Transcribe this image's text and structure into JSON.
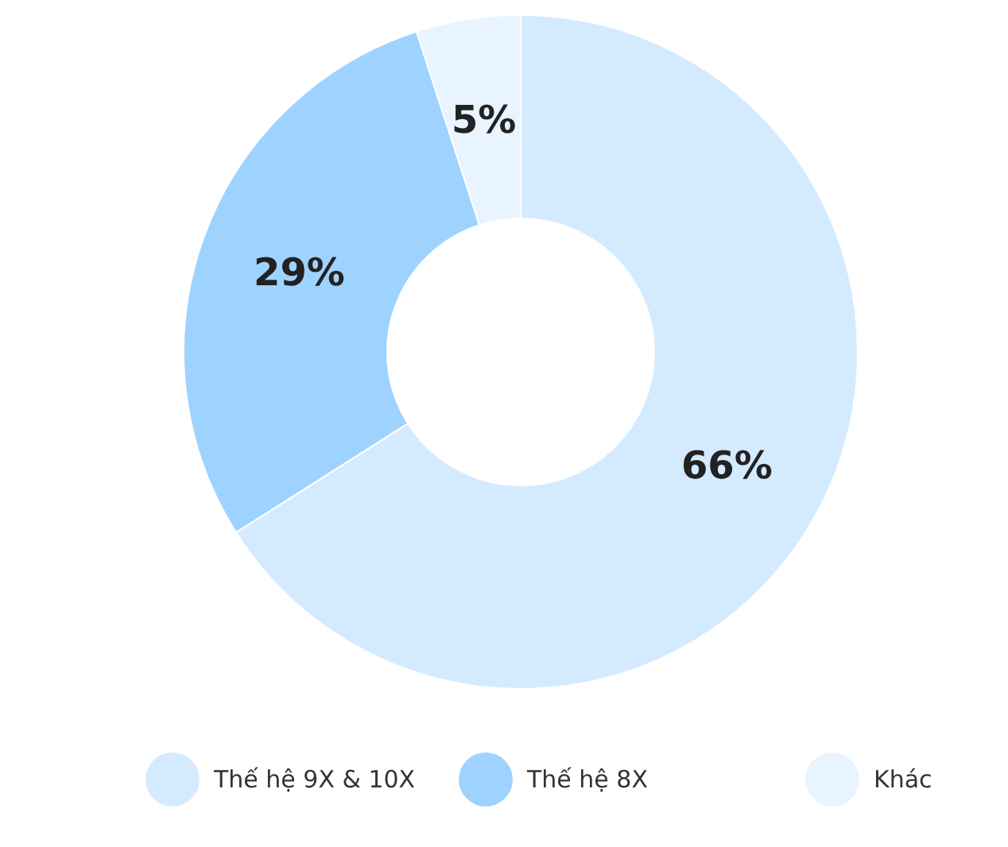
{
  "chart_data": {
    "type": "donut",
    "categories": [
      "Thế hệ 9X & 10X",
      "Thế hệ 8X",
      "Khác"
    ],
    "values": [
      66,
      29,
      5
    ],
    "colors": [
      "#d4eaff",
      "#9fd3ff",
      "#e8f4ff"
    ],
    "value_labels": [
      "66%",
      "29%",
      "5%"
    ],
    "legend": "bottom"
  }
}
